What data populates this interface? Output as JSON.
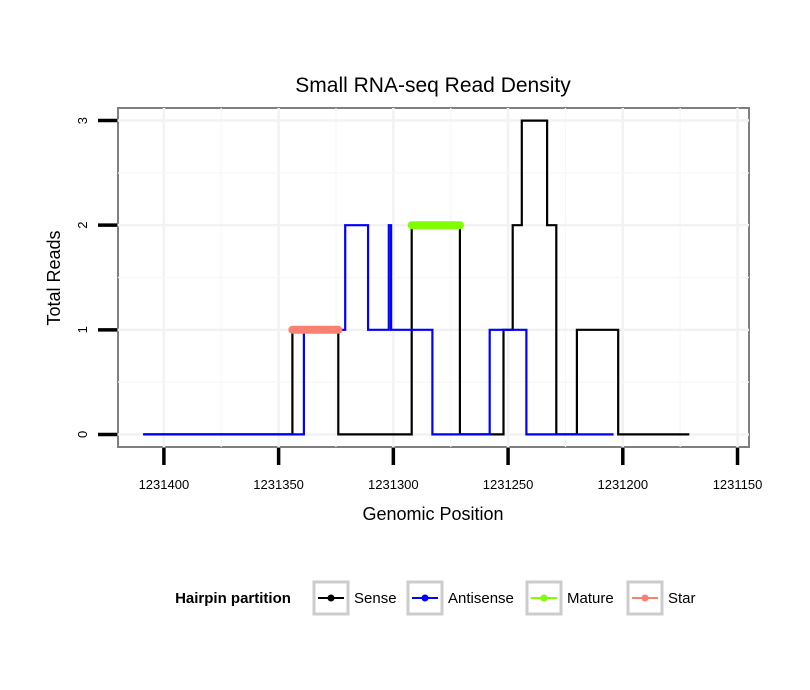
{
  "chart_data": {
    "type": "line",
    "title": "Small RNA-seq Read Density",
    "xlabel": "Genomic Position",
    "ylabel": "Total Reads",
    "xlim": [
      1231420,
      1231145
    ],
    "ylim": [
      -0.12,
      3.12
    ],
    "x_reversed": true,
    "x_ticks": [
      1231400,
      1231350,
      1231300,
      1231250,
      1231200,
      1231150
    ],
    "x_tick_labels": [
      "1231400",
      "1231350",
      "1231300",
      "1231250",
      "1231200",
      "1231150"
    ],
    "y_ticks": [
      0,
      1,
      2,
      3
    ],
    "y_tick_labels": [
      "0",
      "1",
      "2",
      "3"
    ],
    "grid": true,
    "legend": {
      "title": "Hairpin partition",
      "position": "bottom",
      "entries": [
        "Sense",
        "Antisense",
        "Mature",
        "Star"
      ]
    },
    "colors": {
      "Sense": "#000000",
      "Antisense": "#0000ff",
      "Mature": "#7fff00",
      "Star": "#fa8072"
    },
    "series": [
      {
        "name": "Sense",
        "kind": "step-line",
        "points": [
          [
            1231409,
            0
          ],
          [
            1231344,
            0
          ],
          [
            1231344,
            1
          ],
          [
            1231340,
            1
          ],
          [
            1231340,
            1
          ],
          [
            1231326,
            1
          ],
          [
            1231326,
            1
          ],
          [
            1231324,
            1
          ],
          [
            1231324,
            0
          ],
          [
            1231292,
            0
          ],
          [
            1231292,
            2
          ],
          [
            1231271,
            2
          ],
          [
            1231271,
            0
          ],
          [
            1231252,
            0
          ],
          [
            1231252,
            1
          ],
          [
            1231248,
            1
          ],
          [
            1231248,
            2
          ],
          [
            1231244,
            2
          ],
          [
            1231244,
            3
          ],
          [
            1231233,
            3
          ],
          [
            1231233,
            2
          ],
          [
            1231229,
            2
          ],
          [
            1231229,
            0
          ],
          [
            1231220,
            0
          ],
          [
            1231220,
            1
          ],
          [
            1231202,
            1
          ],
          [
            1231202,
            0
          ],
          [
            1231171,
            0
          ]
        ]
      },
      {
        "name": "Antisense",
        "kind": "step-line",
        "points": [
          [
            1231409,
            0
          ],
          [
            1231339,
            0
          ],
          [
            1231339,
            1
          ],
          [
            1231321,
            1
          ],
          [
            1231321,
            2
          ],
          [
            1231311,
            2
          ],
          [
            1231311,
            1
          ],
          [
            1231302,
            1
          ],
          [
            1231302,
            2
          ],
          [
            1231301,
            2
          ],
          [
            1231301,
            1
          ],
          [
            1231283,
            1
          ],
          [
            1231283,
            0
          ],
          [
            1231258,
            0
          ],
          [
            1231258,
            1
          ],
          [
            1231242,
            1
          ],
          [
            1231242,
            0
          ],
          [
            1231204,
            0
          ]
        ]
      },
      {
        "name": "Mature",
        "kind": "segment",
        "points": [
          [
            1231292,
            2
          ],
          [
            1231271,
            2
          ]
        ]
      },
      {
        "name": "Star",
        "kind": "segment",
        "points": [
          [
            1231344,
            1
          ],
          [
            1231324,
            1
          ]
        ]
      }
    ]
  }
}
